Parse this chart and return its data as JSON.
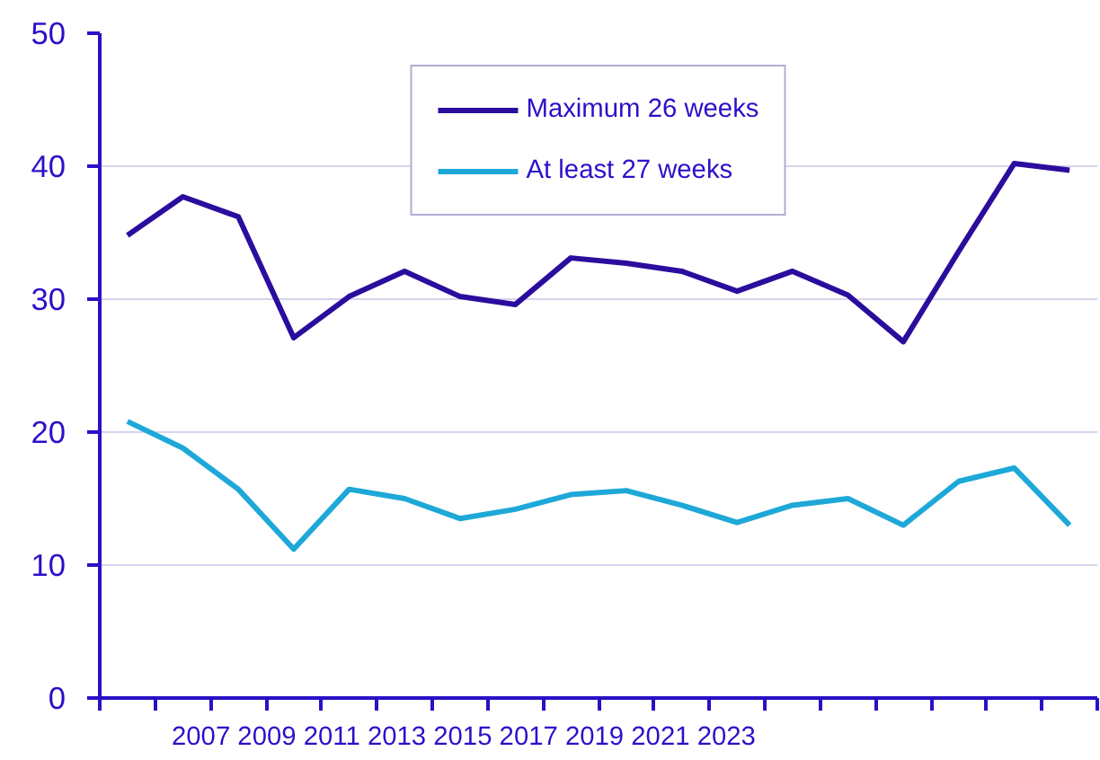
{
  "chart_data": {
    "type": "line",
    "categories": [
      null,
      null,
      null,
      null,
      null,
      null,
      null,
      null,
      null,
      null,
      null,
      null,
      null,
      null,
      null,
      null,
      null,
      null
    ],
    "series": [
      {
        "name": "Maximum 26 weeks",
        "color": "#2b0d9e",
        "values": [
          34.8,
          37.7,
          36.2,
          27.1,
          30.2,
          32.1,
          30.2,
          29.6,
          33.1,
          32.7,
          32.1,
          30.6,
          32.1,
          30.3,
          26.8,
          33.6,
          40.2,
          39.7
        ]
      },
      {
        "name": "At least 27 weeks",
        "color": "#1ea8d8",
        "values": [
          20.8,
          18.8,
          15.7,
          11.2,
          15.7,
          15.0,
          13.5,
          14.2,
          15.3,
          15.6,
          14.5,
          13.2,
          14.5,
          15.0,
          13.0,
          16.3,
          17.3,
          13.0
        ]
      }
    ],
    "ylim": [
      0,
      50
    ],
    "yticks": [
      0,
      10,
      20,
      30,
      40,
      50
    ],
    "annotations": [
      "2007 2009 2011 2013 2015 2017 2019 2021 2023"
    ],
    "grid": "y",
    "legend": "top",
    "marker": "none",
    "line_style": "solid"
  }
}
